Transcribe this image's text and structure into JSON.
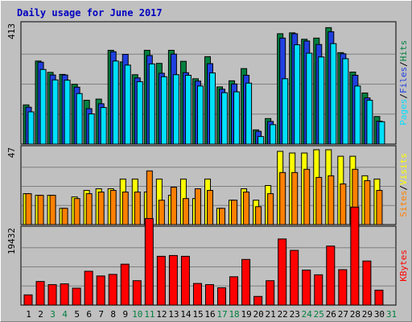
{
  "chart_data": {
    "type": "bar",
    "title": "Daily usage for June 2017",
    "days": [
      "1",
      "2",
      "3",
      "4",
      "5",
      "6",
      "7",
      "8",
      "9",
      "10",
      "11",
      "12",
      "13",
      "14",
      "15",
      "16",
      "17",
      "18",
      "19",
      "20",
      "21",
      "22",
      "23",
      "24",
      "25",
      "26",
      "27",
      "28",
      "29",
      "30",
      "31"
    ],
    "weekend_days": [
      "3",
      "4",
      "10",
      "11",
      "17",
      "18",
      "24",
      "25",
      "31"
    ],
    "panels": [
      {
        "axis_max_label": "413",
        "axis_max": 413,
        "legend": [
          "Pages",
          "/",
          "Files",
          "/",
          "Hits"
        ],
        "legend_colors": [
          "#00e0ff",
          "#000000",
          "#2040e0",
          "#000000",
          "#008040"
        ],
        "series": [
          {
            "name": "Hits",
            "color": "#008040",
            "values": [
              135,
              286,
              247,
              240,
              206,
              151,
              155,
              323,
              283,
              239,
              323,
              278,
              323,
              285,
              225,
              301,
              197,
              218,
              260,
              49,
              88,
              380,
              383,
              361,
              365,
              401,
              315,
              248,
              176,
              95,
              null
            ]
          },
          {
            "name": "Files",
            "color": "#2040e0",
            "values": [
              127,
              282,
              238,
              238,
              196,
              122,
              139,
              318,
              309,
              228,
              305,
              244,
              310,
              246,
              217,
              277,
              189,
              207,
              237,
              44,
              78,
              365,
              380,
              355,
              343,
              387,
              311,
              237,
              159,
              79,
              null
            ]
          },
          {
            "name": "Pages",
            "color": "#00e0ff",
            "values": [
              111,
              257,
              221,
              220,
              174,
              104,
              126,
              286,
              272,
              215,
              276,
              232,
              239,
              237,
              200,
              245,
              177,
              180,
              210,
              26,
              67,
              225,
              342,
              313,
              300,
              346,
              294,
              200,
              151,
              77,
              null
            ]
          }
        ]
      },
      {
        "axis_max_label": "47",
        "axis_max": 47,
        "legend": [
          "Sites",
          "/",
          "Visits"
        ],
        "legend_colors": [
          "#ff8000",
          "#000000",
          "#ffff00"
        ],
        "series": [
          {
            "name": "Visits",
            "color": "#ffff00",
            "values": [
              19,
              18,
              18,
              10,
              17,
              21,
              22,
              22,
              28,
              28,
              20,
              28,
              18,
              28,
              16,
              28,
              10,
              15,
              22,
              15,
              24,
              45,
              44,
              44,
              46,
              46,
              42,
              42,
              30,
              28,
              null
            ]
          },
          {
            "name": "Sites",
            "color": "#ff8000",
            "values": [
              19,
              18,
              18,
              10,
              16,
              19,
              20,
              21,
              20,
              20,
              33,
              15,
              23,
              16,
              22,
              21,
              10,
              15,
              20,
              11,
              19,
              32,
              32,
              34,
              29,
              30,
              25,
              34,
              27,
              21,
              null
            ]
          }
        ]
      },
      {
        "axis_max_label": "19432",
        "axis_max": 19432,
        "legend": [
          "KBytes"
        ],
        "legend_colors": [
          "#ff0000"
        ],
        "series": [
          {
            "name": "KBytes",
            "color": "#ff0000",
            "values": [
              2600,
              6000,
              5200,
              5400,
              4300,
              8600,
              7400,
              7800,
              10400,
              6200,
              22000,
              12400,
              12600,
              12400,
              5500,
              5200,
              4400,
              7200,
              11600,
              2200,
              6200,
              16800,
              13900,
              8900,
              7700,
              15000,
              9000,
              24900,
              11200,
              3800,
              null
            ]
          }
        ]
      }
    ]
  }
}
